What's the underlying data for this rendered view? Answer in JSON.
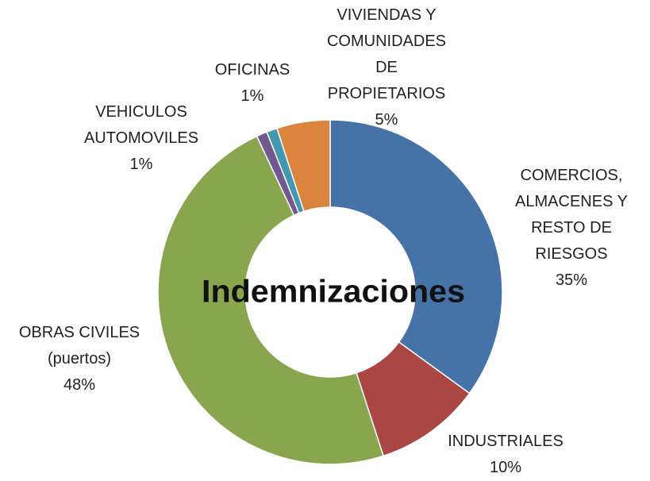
{
  "chart_data": {
    "type": "donut",
    "title": "Indemnizaciones",
    "categories": [
      "COMERCIOS,\nALMACENES Y\nRESTO DE\nRIESGOS",
      "INDUSTRIALES",
      "OBRAS CIVILES\n(puertos)",
      "VEHICULOS\nAUTOMOVILES",
      "OFICINAS",
      "VIVIENDAS Y\nCOMUNIDADES\nDE\nPROPIETARIOS"
    ],
    "values": [
      35,
      10,
      48,
      1,
      1,
      5
    ],
    "value_labels": [
      "35%",
      "10%",
      "48%",
      "1%",
      "1%",
      "5%"
    ],
    "colors": [
      "#4572a7",
      "#aa4643",
      "#89a54e",
      "#71588f",
      "#4198af",
      "#db843d"
    ]
  }
}
